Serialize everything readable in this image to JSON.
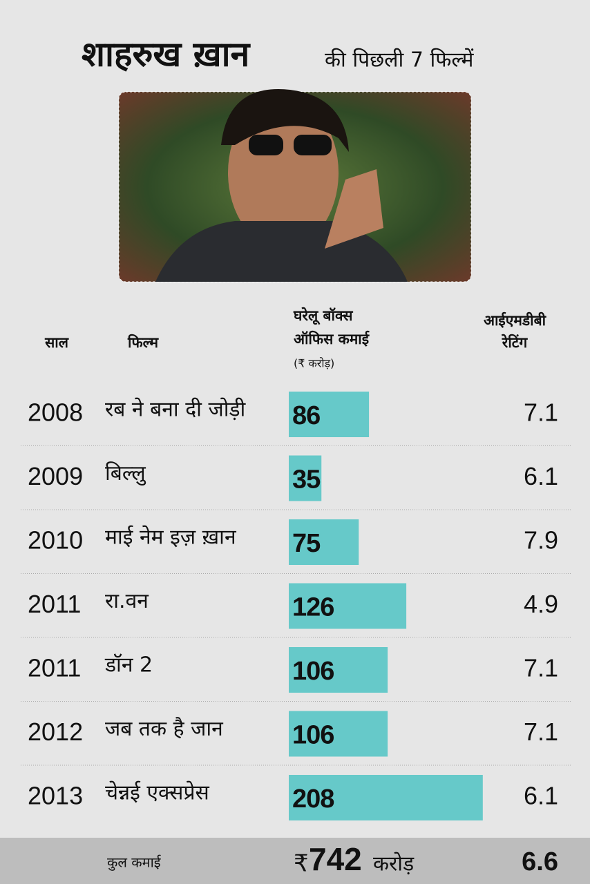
{
  "chart_data": {
    "type": "bar",
    "title": "शाहरुख ख़ान",
    "subtitle": "की पिछली 7 फिल्में",
    "headers": {
      "year": "साल",
      "film": "फिल्म",
      "earnings": [
        "घरेलू बॉक्स",
        "ऑफिस कमाई"
      ],
      "unit": "(₹ करोड़)",
      "rating": [
        "आईएमडीबी",
        "रेटिंग"
      ]
    },
    "years": [
      "2008",
      "2009",
      "2010",
      "2011",
      "2011",
      "2012",
      "2013"
    ],
    "categories": [
      "रब ने बना दी जोड़ी",
      "बिल्लु",
      "माई नेम इज़ ख़ान",
      "रा.वन",
      "डॉन 2",
      "जब तक है जान",
      "चेन्नई एक्सप्रेस"
    ],
    "values": [
      86,
      35,
      75,
      126,
      106,
      106,
      208
    ],
    "color": "#66c9c9",
    "ratings": [
      7.1,
      6.1,
      7.9,
      4.9,
      7.1,
      7.1,
      6.1
    ],
    "total": {
      "label": "कुल कमाई",
      "currency": "₹",
      "value": 742,
      "unit": "करोड़",
      "rating": 6.6
    }
  }
}
